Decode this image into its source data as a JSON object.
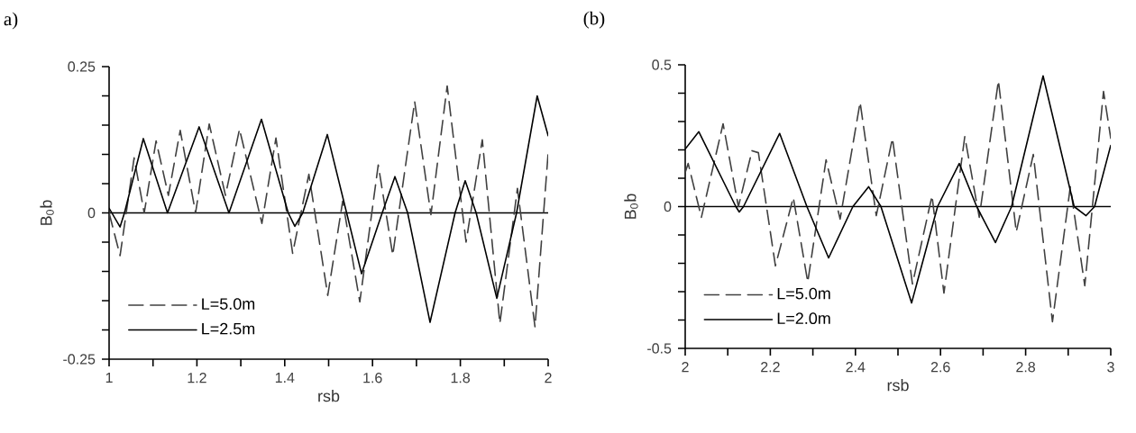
{
  "chart_data": [
    {
      "type": "line",
      "title": "a)",
      "xlabel": "rsb",
      "ylabel": "B$_{0}$b",
      "xlim": [
        1,
        2
      ],
      "ylim": [
        -0.25,
        0.25
      ],
      "xticks": [
        1,
        {
          "value": 1.1,
          "label": null
        },
        1.2,
        {
          "value": 1.3,
          "label": null
        },
        1.4,
        {
          "value": 1.5,
          "label": null
        },
        1.6,
        {
          "value": 1.7,
          "label": null
        },
        1.8,
        {
          "value": 1.9,
          "label": null
        },
        2
      ],
      "yticks": [
        -0.25,
        {
          "value": -0.2,
          "label": null
        },
        {
          "value": -0.15,
          "label": null
        },
        {
          "value": -0.1,
          "label": null
        },
        {
          "value": -0.05,
          "label": null
        },
        0,
        {
          "value": 0.05,
          "label": null
        },
        {
          "value": 0.1,
          "label": null
        },
        {
          "value": 0.15,
          "label": null
        },
        {
          "value": 0.2,
          "label": null
        },
        0.25
      ],
      "legend": "bottom left",
      "ref_lines": [
        {
          "axis": "y",
          "value": 0
        }
      ],
      "series": [
        {
          "name": "L=5.0m",
          "color": "#404040",
          "line_style": "dashed",
          "x": [
            1.0,
            1.025,
            1.039,
            1.057,
            1.08,
            1.107,
            1.135,
            1.162,
            1.197,
            1.228,
            1.265,
            1.297,
            1.348,
            1.38,
            1.418,
            1.455,
            1.498,
            1.532,
            1.571,
            1.613,
            1.646,
            1.696,
            1.733,
            1.77,
            1.813,
            1.85,
            1.89,
            1.93,
            1.97,
            2.0
          ],
          "values": [
            0.0,
            -0.073,
            0.0,
            0.094,
            0.0,
            0.123,
            0.03,
            0.141,
            0.0,
            0.152,
            0.03,
            0.143,
            -0.018,
            0.128,
            -0.069,
            0.066,
            -0.141,
            0.02,
            -0.152,
            0.082,
            -0.072,
            0.19,
            -0.003,
            0.217,
            -0.05,
            0.125,
            -0.189,
            0.042,
            -0.195,
            0.103
          ]
        },
        {
          "name": "L=2.5m",
          "color": "#000000",
          "line_style": "solid",
          "x": [
            1.0,
            1.025,
            1.035,
            1.078,
            1.133,
            1.205,
            1.273,
            1.347,
            1.408,
            1.423,
            1.441,
            1.497,
            1.541,
            1.575,
            1.622,
            1.651,
            1.68,
            1.731,
            1.788,
            1.811,
            1.836,
            1.883,
            1.928,
            1.975,
            2.0
          ],
          "values": [
            0.008,
            -0.024,
            0.0,
            0.127,
            0.0,
            0.147,
            0.0,
            0.16,
            0.0,
            -0.023,
            0.0,
            0.134,
            0.0,
            -0.104,
            0.0,
            0.062,
            0.0,
            -0.187,
            0.0,
            0.055,
            0.0,
            -0.146,
            0.0,
            0.2,
            0.132
          ]
        }
      ]
    },
    {
      "type": "line",
      "title": "(b)",
      "xlabel": "rsb",
      "ylabel": "B$_{0}$b",
      "xlim": [
        2,
        3
      ],
      "ylim": [
        -0.5,
        0.5
      ],
      "xticks": [
        2,
        {
          "value": 2.1,
          "label": null
        },
        2.2,
        {
          "value": 2.3,
          "label": null
        },
        2.4,
        {
          "value": 2.5,
          "label": null
        },
        2.6,
        {
          "value": 2.7,
          "label": null
        },
        2.8,
        {
          "value": 2.9,
          "label": null
        },
        3
      ],
      "yticks": [
        -0.5,
        {
          "value": -0.4,
          "label": null
        },
        {
          "value": -0.3,
          "label": null
        },
        {
          "value": -0.2,
          "label": null
        },
        {
          "value": -0.1,
          "label": null
        },
        0,
        {
          "value": 0.1,
          "label": null
        },
        {
          "value": 0.2,
          "label": null
        },
        {
          "value": 0.3,
          "label": null
        },
        {
          "value": 0.4,
          "label": null
        },
        0.5
      ],
      "legend": "bottom left",
      "ref_lines": [
        {
          "axis": "y",
          "value": 0
        }
      ],
      "series": [
        {
          "name": "L=5.0m",
          "color": "#404040",
          "line_style": "dashed",
          "x": [
            2.0,
            2.007,
            2.038,
            2.089,
            2.125,
            2.157,
            2.172,
            2.212,
            2.254,
            2.288,
            2.331,
            2.364,
            2.411,
            2.449,
            2.487,
            2.534,
            2.58,
            2.608,
            2.657,
            2.691,
            2.736,
            2.778,
            2.818,
            2.863,
            2.905,
            2.939,
            2.983,
            3.0
          ],
          "values": [
            0.121,
            0.152,
            -0.038,
            0.292,
            0.0,
            0.197,
            0.19,
            -0.209,
            0.032,
            -0.266,
            0.165,
            -0.044,
            0.368,
            -0.032,
            0.241,
            -0.273,
            0.038,
            -0.305,
            0.247,
            -0.038,
            0.444,
            -0.089,
            0.184,
            -0.406,
            0.07,
            -0.279,
            0.406,
            0.241
          ]
        },
        {
          "name": "L=2.0m",
          "color": "#000000",
          "line_style": "solid",
          "x": [
            2.0,
            2.032,
            2.119,
            2.127,
            2.137,
            2.222,
            2.286,
            2.337,
            2.394,
            2.431,
            2.46,
            2.532,
            2.593,
            2.644,
            2.685,
            2.729,
            2.767,
            2.841,
            2.914,
            2.942,
            2.962,
            3.0
          ],
          "values": [
            0.203,
            0.264,
            0.0,
            -0.019,
            0.0,
            0.258,
            0.0,
            -0.181,
            0.0,
            0.07,
            0.0,
            -0.34,
            0.0,
            0.152,
            0.0,
            -0.127,
            0.0,
            0.461,
            0.0,
            -0.032,
            0.0,
            0.216
          ]
        }
      ]
    }
  ]
}
